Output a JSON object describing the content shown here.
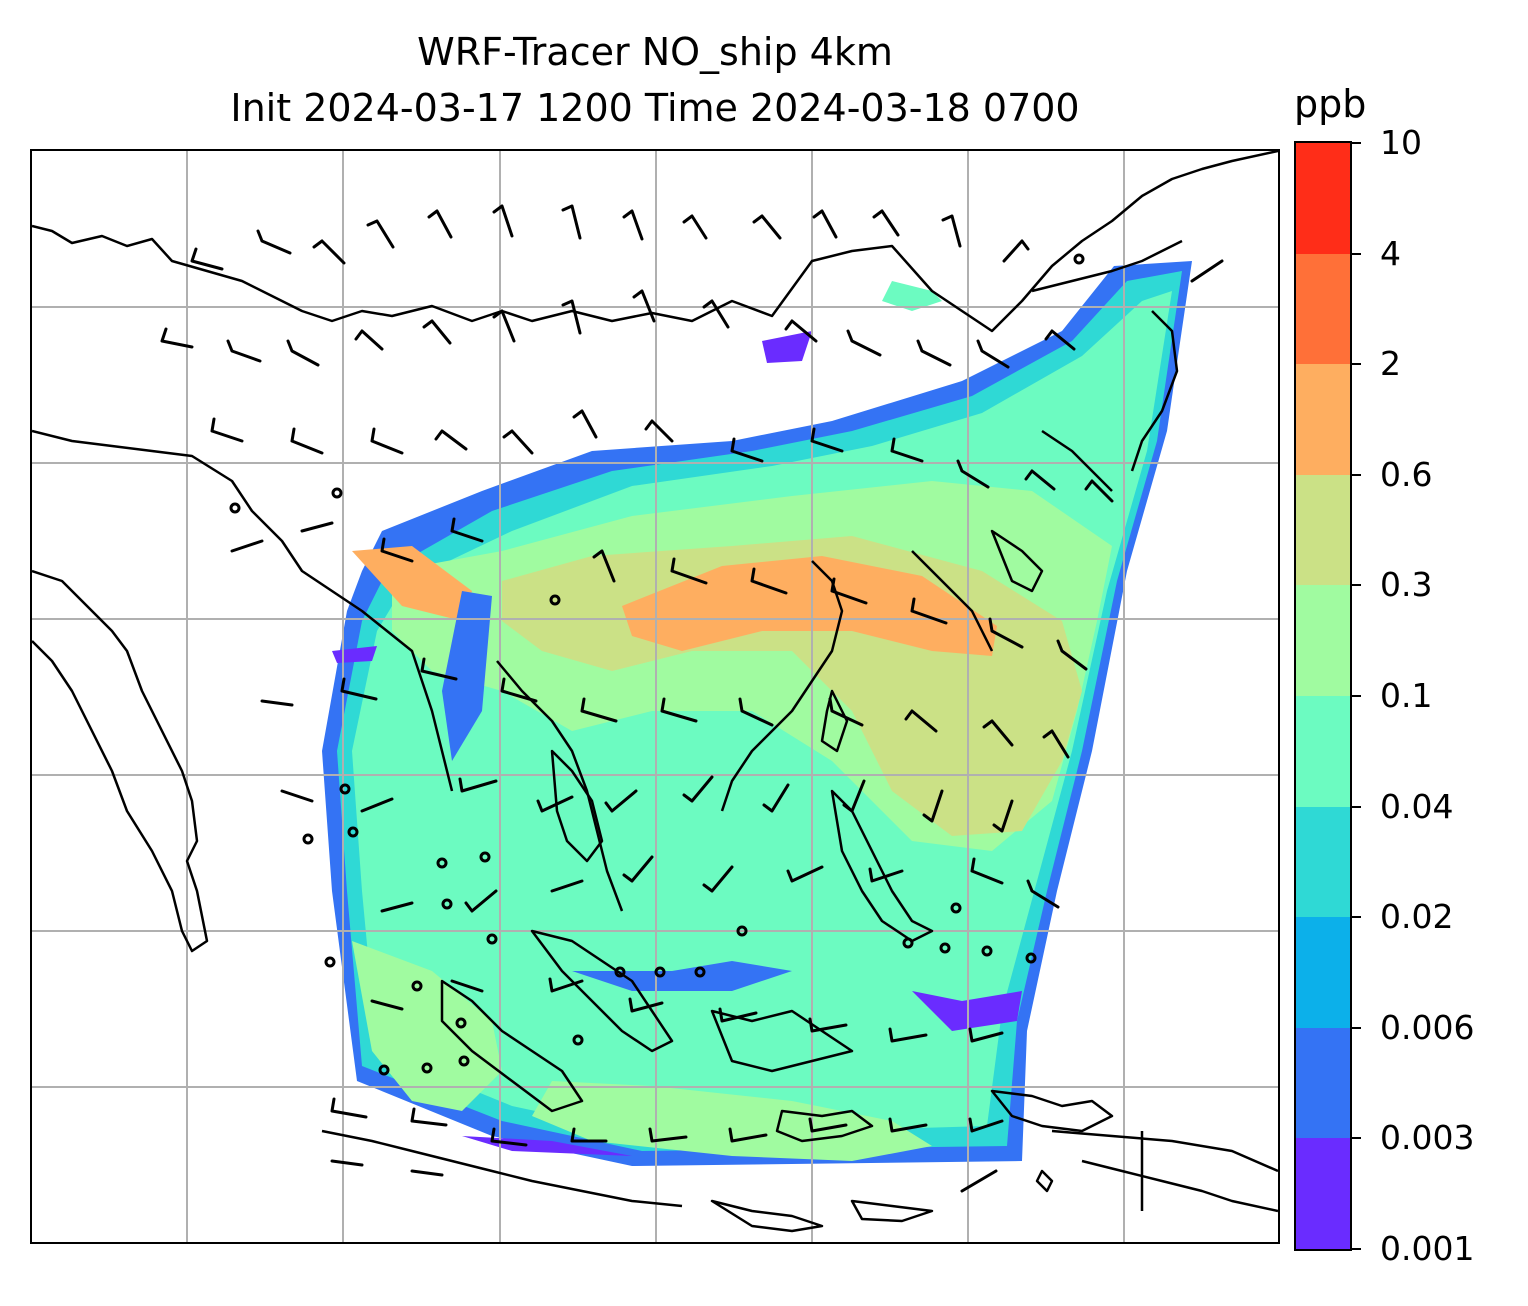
{
  "title": {
    "line1": "WRF-Tracer NO_ship 4km",
    "line2": "Init 2024-03-17 1200 Time 2024-03-18 0700"
  },
  "colorbar": {
    "unit": "ppb",
    "levels": [
      "0.001",
      "0.003",
      "0.006",
      "0.02",
      "0.04",
      "0.1",
      "0.3",
      "0.6",
      "2",
      "4",
      "10"
    ],
    "colors": [
      "#6a2cff",
      "#3473f4",
      "#0cb0ea",
      "#2fd9d5",
      "#6cfbc1",
      "#a0fba0",
      "#cbe186",
      "#feae60",
      "#ff7038",
      "#ff2d18"
    ]
  },
  "map": {
    "gridlines": true,
    "coastline_color": "#000000",
    "barb_color": "#000000"
  }
}
